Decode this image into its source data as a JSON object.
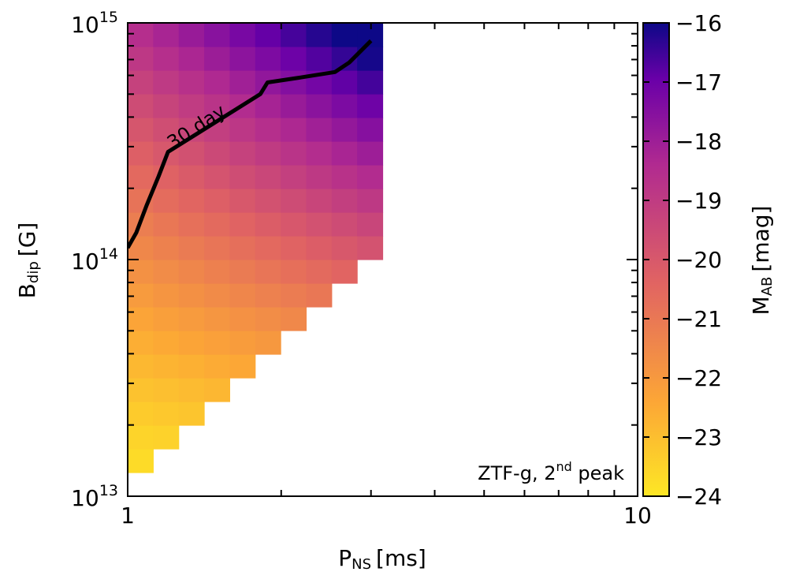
{
  "chart_data": {
    "type": "heatmap",
    "x_axis": {
      "label": "P",
      "label_sub": "NS",
      "label_unit": "[ms]",
      "scale": "log",
      "lim": [
        1,
        10
      ],
      "major_ticks": [
        {
          "value": 1,
          "label": "1"
        },
        {
          "value": 10,
          "label": "10"
        }
      ]
    },
    "y_axis": {
      "label": "B",
      "label_sub": "dip",
      "label_unit": "[G]",
      "scale": "log",
      "lim": [
        10000000000000.0,
        1000000000000000.0
      ],
      "major_ticks": [
        {
          "value": 10000000000000.0,
          "base": "10",
          "exp": "13"
        },
        {
          "value": 100000000000000.0,
          "base": "10",
          "exp": "14"
        },
        {
          "value": 1000000000000000.0,
          "base": "10",
          "exp": "15"
        }
      ]
    },
    "colorbar": {
      "label": "M",
      "label_sub": "AB",
      "label_unit": "[mag]",
      "range": [
        -24,
        -16
      ],
      "ticks": [
        "−16",
        "−17",
        "−18",
        "−19",
        "−20",
        "−21",
        "−22",
        "−23",
        "−24"
      ],
      "tick_values": [
        -16,
        -17,
        -18,
        -19,
        -20,
        -21,
        -22,
        -23,
        -24
      ],
      "colormap": "plasma",
      "stops": [
        "#fde725",
        "#fca636",
        "#e16462",
        "#b12a90",
        "#6a00a8",
        "#0d0887"
      ]
    },
    "grid": {
      "n_cols": 10,
      "n_rows": 20,
      "log_x_step": 0.05,
      "log_y_step": 0.1,
      "min_row_per_col": [
        1,
        2,
        3,
        4,
        5,
        6,
        7,
        8,
        9,
        10
      ]
    },
    "contour": {
      "label": "30 day",
      "points": [
        [
          1.0,
          112000000000000.0
        ],
        [
          1.04,
          130000000000000.0
        ],
        [
          1.09,
          170000000000000.0
        ],
        [
          1.15,
          225000000000000.0
        ],
        [
          1.2,
          285000000000000.0
        ],
        [
          1.82,
          500000000000000.0
        ],
        [
          1.88,
          560000000000000.0
        ],
        [
          2.15,
          585000000000000.0
        ],
        [
          2.55,
          620000000000000.0
        ],
        [
          2.72,
          680000000000000.0
        ],
        [
          3.0,
          840000000000000.0
        ]
      ]
    },
    "annotation": {
      "text": "ZTF-g, 2",
      "sup": "nd",
      "text_after": " peak",
      "placement": "bottom-right"
    }
  }
}
